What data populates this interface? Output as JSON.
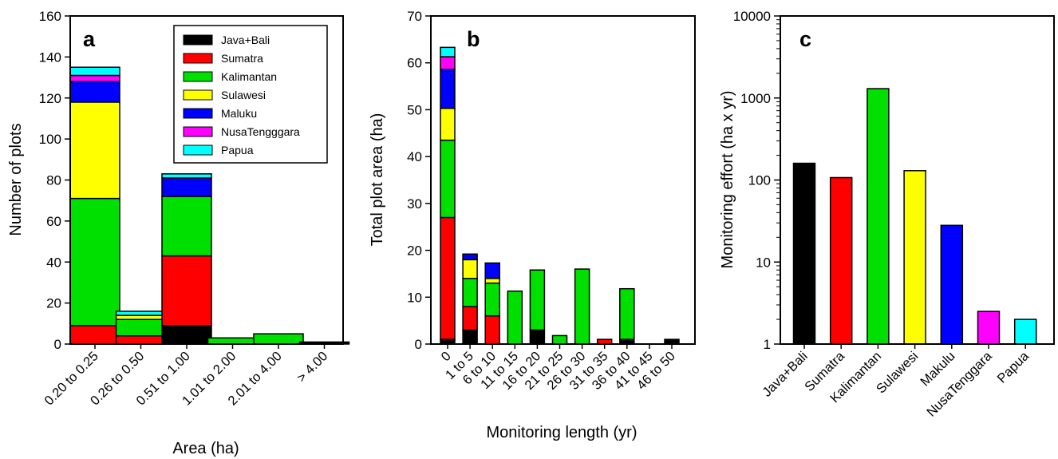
{
  "colors": {
    "Java+Bali": "#000000",
    "Sumatra": "#ff0000",
    "Kalimantan": "#00e000",
    "Sulawesi": "#ffff00",
    "Maluku": "#0000ff",
    "NusaTengggara": "#ff00ff",
    "Papua": "#00ffff"
  },
  "chart_data": [
    {
      "panel_label": "a",
      "type": "bar",
      "stacked": true,
      "xlabel": "Area (ha)",
      "ylabel": "Number of plots",
      "ylim": [
        0,
        160
      ],
      "yticks": [
        0,
        20,
        40,
        60,
        80,
        100,
        120,
        140,
        160
      ],
      "legend_position": "top-right",
      "categories": [
        "0.20 to 0.25",
        "0.26 to 0.50",
        "0.51 to 1.00",
        "1.01 to 2.00",
        "2.01 to 4.00",
        "> 4.00"
      ],
      "series": [
        {
          "name": "Java+Bali",
          "values": [
            0,
            0,
            9,
            0,
            0,
            1
          ]
        },
        {
          "name": "Sumatra",
          "values": [
            9,
            4,
            34,
            0,
            0,
            0
          ]
        },
        {
          "name": "Kalimantan",
          "values": [
            62,
            8,
            29,
            3,
            5,
            0
          ]
        },
        {
          "name": "Sulawesi",
          "values": [
            47,
            2,
            0,
            0,
            0,
            0
          ]
        },
        {
          "name": "Maluku",
          "values": [
            10,
            0,
            9,
            0,
            0,
            0
          ]
        },
        {
          "name": "NusaTengggara",
          "values": [
            3,
            0,
            0,
            0,
            0,
            0
          ]
        },
        {
          "name": "Papua",
          "values": [
            4,
            2,
            2,
            0,
            0,
            0
          ]
        }
      ]
    },
    {
      "panel_label": "b",
      "type": "bar",
      "stacked": true,
      "xlabel": "Monitoring length (yr)",
      "ylabel": "Total plot area (ha)",
      "ylim": [
        0,
        70
      ],
      "yticks": [
        0,
        10,
        20,
        30,
        40,
        50,
        60,
        70
      ],
      "categories": [
        "0",
        "1 to 5",
        "6 to 10",
        "11 to 15",
        "16 to 20",
        "21 to 25",
        "26 to 30",
        "31 to 35",
        "36 to 40",
        "41 to 45",
        "46 to 50"
      ],
      "series": [
        {
          "name": "Java+Bali",
          "values": [
            1,
            3,
            0,
            0,
            3,
            0,
            0,
            0,
            1,
            0,
            1
          ]
        },
        {
          "name": "Sumatra",
          "values": [
            26,
            5,
            6,
            0,
            0,
            0,
            0,
            1,
            0,
            0,
            0
          ]
        },
        {
          "name": "Kalimantan",
          "values": [
            16.5,
            6,
            7,
            11.3,
            12.8,
            1.8,
            16,
            0,
            10.8,
            0,
            0
          ]
        },
        {
          "name": "Sulawesi",
          "values": [
            6.8,
            4,
            1,
            0,
            0,
            0,
            0,
            0,
            0,
            0,
            0
          ]
        },
        {
          "name": "Maluku",
          "values": [
            8.3,
            1.2,
            3.3,
            0,
            0,
            0,
            0,
            0,
            0,
            0,
            0
          ]
        },
        {
          "name": "NusaTengggara",
          "values": [
            2.7,
            0,
            0,
            0,
            0,
            0,
            0,
            0,
            0,
            0,
            0
          ]
        },
        {
          "name": "Papua",
          "values": [
            2,
            0,
            0,
            0,
            0,
            0,
            0,
            0,
            0,
            0,
            0
          ]
        }
      ]
    },
    {
      "panel_label": "c",
      "type": "bar",
      "scale": "log",
      "xlabel": "",
      "ylabel": "Monitoring effort (ha x yr)",
      "ylim": [
        1,
        10000
      ],
      "yticks": [
        "1",
        "10",
        "100",
        "1000",
        "10000"
      ],
      "categories": [
        "Java+Bali",
        "Sumatra",
        "Kalimantan",
        "Sulawesi",
        "Makulu",
        "NusaTenggara",
        "Papua"
      ],
      "values": [
        160,
        107,
        1300,
        130,
        28,
        2.5,
        2
      ],
      "bar_colors": [
        "#000000",
        "#ff0000",
        "#00e000",
        "#ffff00",
        "#0000ff",
        "#ff00ff",
        "#00ffff"
      ]
    }
  ]
}
